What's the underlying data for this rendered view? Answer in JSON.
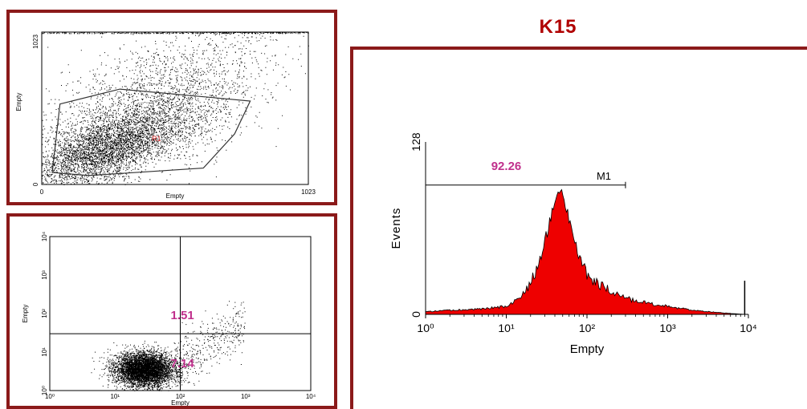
{
  "title": "K15",
  "colors": {
    "frame": "#8b1a1a",
    "title": "#b00000",
    "value": "#c0308c",
    "gate": "#cc2222",
    "fill": "#ee0000"
  },
  "chart_data": [
    {
      "type": "scatter",
      "xlabel": "Empty",
      "ylabel": "Empty",
      "xlim": [
        0,
        1023
      ],
      "ylim": [
        0,
        1023
      ],
      "x_ticks": [
        "0",
        "1023"
      ],
      "y_ticks": [
        "0",
        "1023"
      ],
      "gate_label": "R1"
    },
    {
      "type": "scatter",
      "xlabel": "Empty",
      "ylabel": "Empty",
      "scale": "log",
      "xlim": [
        1,
        10000
      ],
      "ylim": [
        1,
        10000
      ],
      "x_ticks": [
        "10⁰",
        "10¹",
        "10²",
        "10³",
        "10⁴"
      ],
      "y_ticks": [
        "10⁰",
        "10¹",
        "10²",
        "10³",
        "10⁴"
      ],
      "quadrant_values": {
        "upper_right": "1.51",
        "lower_right": "7.14"
      }
    },
    {
      "type": "area",
      "xlabel": "Empty",
      "ylabel": "Events",
      "scale": "log",
      "xlim": [
        1,
        10000
      ],
      "ylim": [
        0,
        128
      ],
      "x_ticks": [
        "10⁰",
        "10¹",
        "10²",
        "10³",
        "10⁴"
      ],
      "y_ticks": [
        "0",
        "128"
      ],
      "marker": {
        "name": "M1",
        "value": "92.26",
        "range": [
          1,
          300
        ]
      },
      "x": [
        1,
        2,
        5,
        10,
        15,
        20,
        25,
        30,
        35,
        40,
        45,
        50,
        60,
        70,
        80,
        100,
        130,
        200,
        300,
        500,
        700,
        1000,
        2000,
        5000,
        9000
      ],
      "y": [
        2,
        3,
        4,
        6,
        12,
        22,
        38,
        55,
        70,
        85,
        92,
        88,
        72,
        55,
        42,
        30,
        24,
        17,
        12,
        9,
        7,
        6,
        3,
        1,
        0
      ]
    }
  ]
}
